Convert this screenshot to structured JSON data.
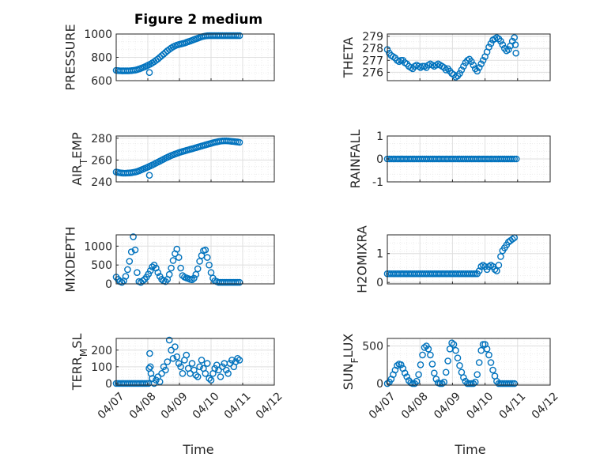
{
  "figure_title": "Figure 2 medium",
  "x_label": "Time",
  "x_tick_labels": [
    "04/07",
    "04/08",
    "04/09",
    "04/10",
    "04/11",
    "04/12"
  ],
  "colors": {
    "marker": "#0072BD",
    "axis": "#262626",
    "grid": "#DFDFDF",
    "minor_grid": "#EAEAEA"
  },
  "chart_data": [
    {
      "type": "scatter",
      "id": "pressure",
      "title": "Figure 2 medium",
      "ylabel_parts": [
        {
          "t": "PRESSURE"
        }
      ],
      "yticks": [
        600,
        800,
        1000
      ],
      "ytick_labels": [
        "600",
        "800",
        "1000"
      ],
      "ylim": [
        600,
        1000
      ],
      "xlim": [
        0,
        5
      ],
      "grid": true,
      "show_xticklabels": false,
      "x": [
        0.0,
        0.06,
        0.12,
        0.18,
        0.24,
        0.3,
        0.36,
        0.42,
        0.48,
        0.54,
        0.6,
        0.66,
        0.72,
        0.78,
        0.84,
        0.9,
        0.96,
        1.02,
        1.08,
        1.14,
        1.2,
        1.26,
        1.32,
        1.38,
        1.44,
        1.5,
        1.56,
        1.62,
        1.68,
        1.74,
        1.8,
        1.86,
        1.92,
        1.98,
        2.04,
        2.1,
        2.16,
        2.22,
        2.28,
        2.34,
        2.4,
        2.46,
        2.52,
        2.58,
        2.64,
        2.7,
        2.76,
        2.82,
        2.88,
        2.94,
        3.0,
        3.06,
        3.12,
        3.18,
        3.24,
        3.3,
        3.36,
        3.42,
        3.48,
        3.54,
        3.6,
        3.66,
        3.72,
        3.78,
        3.84,
        3.9,
        1.05
      ],
      "y": [
        688,
        686,
        685,
        684,
        684,
        684,
        684,
        685,
        686,
        688,
        690,
        694,
        700,
        706,
        712,
        718,
        726,
        734,
        742,
        752,
        762,
        774,
        786,
        800,
        814,
        828,
        842,
        856,
        868,
        880,
        890,
        898,
        905,
        910,
        914,
        918,
        922,
        928,
        934,
        940,
        946,
        952,
        958,
        964,
        970,
        976,
        980,
        983,
        985,
        986,
        986,
        986,
        986,
        986,
        986,
        986,
        986,
        986,
        986,
        986,
        986,
        986,
        986,
        986,
        986,
        986,
        670
      ]
    },
    {
      "type": "scatter",
      "id": "theta",
      "title": "",
      "ylabel_parts": [
        {
          "t": "THETA"
        }
      ],
      "yticks": [
        276,
        277,
        278,
        279
      ],
      "ytick_labels": [
        "276",
        "277",
        "278",
        "279"
      ],
      "ylim": [
        275.3,
        279.2
      ],
      "xlim": [
        0,
        5
      ],
      "grid": true,
      "show_xticklabels": false,
      "x": [
        0.0,
        0.06,
        0.12,
        0.18,
        0.24,
        0.3,
        0.36,
        0.42,
        0.48,
        0.54,
        0.6,
        0.66,
        0.72,
        0.78,
        0.84,
        0.9,
        0.96,
        1.02,
        1.08,
        1.14,
        1.2,
        1.26,
        1.32,
        1.38,
        1.44,
        1.5,
        1.56,
        1.62,
        1.68,
        1.74,
        1.8,
        1.86,
        1.92,
        1.98,
        2.04,
        2.1,
        2.16,
        2.22,
        2.28,
        2.34,
        2.4,
        2.46,
        2.52,
        2.58,
        2.64,
        2.7,
        2.76,
        2.82,
        2.88,
        2.94,
        3.0,
        3.06,
        3.12,
        3.18,
        3.24,
        3.3,
        3.36,
        3.42,
        3.48,
        3.54,
        3.6,
        3.66,
        3.72,
        3.78,
        3.84,
        3.9,
        3.93,
        3.95
      ],
      "y": [
        277.9,
        277.6,
        277.4,
        277.3,
        277.2,
        277.0,
        276.9,
        277.0,
        277.0,
        276.8,
        276.7,
        276.5,
        276.4,
        276.3,
        276.5,
        276.6,
        276.5,
        276.4,
        276.5,
        276.5,
        276.4,
        276.6,
        276.7,
        276.6,
        276.5,
        276.6,
        276.7,
        276.6,
        276.5,
        276.4,
        276.2,
        276.3,
        276.1,
        275.9,
        275.8,
        275.6,
        275.7,
        275.9,
        276.2,
        276.5,
        276.8,
        277.0,
        277.1,
        276.9,
        276.6,
        276.3,
        276.1,
        276.4,
        276.7,
        277.0,
        277.3,
        277.7,
        278.1,
        278.4,
        278.7,
        278.8,
        278.9,
        278.8,
        278.6,
        278.3,
        278.0,
        277.8,
        277.9,
        278.2,
        278.6,
        278.9,
        278.3,
        277.6
      ]
    },
    {
      "type": "scatter",
      "id": "air_temp",
      "title": "",
      "ylabel_parts": [
        {
          "t": "AIR"
        },
        {
          "t": "T",
          "sub": true
        },
        {
          "t": "EMP"
        }
      ],
      "yticks": [
        240,
        260,
        280
      ],
      "ytick_labels": [
        "240",
        "260",
        "280"
      ],
      "ylim": [
        240,
        282
      ],
      "xlim": [
        0,
        5
      ],
      "grid": true,
      "show_xticklabels": false,
      "x": [
        0.0,
        0.06,
        0.12,
        0.18,
        0.24,
        0.3,
        0.36,
        0.42,
        0.48,
        0.54,
        0.6,
        0.66,
        0.72,
        0.78,
        0.84,
        0.9,
        0.96,
        1.02,
        1.08,
        1.14,
        1.2,
        1.26,
        1.32,
        1.38,
        1.44,
        1.5,
        1.56,
        1.62,
        1.68,
        1.74,
        1.8,
        1.86,
        1.92,
        1.98,
        2.04,
        2.1,
        2.16,
        2.22,
        2.28,
        2.34,
        2.4,
        2.46,
        2.52,
        2.58,
        2.64,
        2.7,
        2.76,
        2.82,
        2.88,
        2.94,
        3.0,
        3.06,
        3.12,
        3.18,
        3.24,
        3.3,
        3.36,
        3.42,
        3.48,
        3.54,
        3.6,
        3.66,
        3.72,
        3.78,
        3.84,
        3.9,
        1.05
      ],
      "y": [
        249,
        248.6,
        248.3,
        248.1,
        248.0,
        248.0,
        248.1,
        248.2,
        248.4,
        248.7,
        249.0,
        249.5,
        250.1,
        250.8,
        251.5,
        252.3,
        253.0,
        253.8,
        254.6,
        255.4,
        256.3,
        257.2,
        258.1,
        259.0,
        259.9,
        260.8,
        261.7,
        262.5,
        263.3,
        264.1,
        264.8,
        265.5,
        266.1,
        266.7,
        267.3,
        267.8,
        268.3,
        268.8,
        269.3,
        269.8,
        270.3,
        270.8,
        271.3,
        271.8,
        272.3,
        272.8,
        273.3,
        273.8,
        274.3,
        274.8,
        275.3,
        275.8,
        276.2,
        276.6,
        277.0,
        277.3,
        277.5,
        277.6,
        277.6,
        277.5,
        277.3,
        277.1,
        276.9,
        276.7,
        276.5,
        276.2,
        246
      ]
    },
    {
      "type": "scatter",
      "id": "rainfall",
      "title": "",
      "ylabel_parts": [
        {
          "t": "RAINFALL"
        }
      ],
      "yticks": [
        -1,
        0,
        1
      ],
      "ytick_labels": [
        "-1",
        "0",
        "1"
      ],
      "ylim": [
        -1,
        1
      ],
      "xlim": [
        0,
        5
      ],
      "grid": true,
      "show_xticklabels": false,
      "x": [
        0.0,
        0.06,
        0.12,
        0.18,
        0.24,
        0.3,
        0.36,
        0.42,
        0.48,
        0.54,
        0.6,
        0.66,
        0.72,
        0.78,
        0.84,
        0.9,
        0.96,
        1.02,
        1.08,
        1.14,
        1.2,
        1.26,
        1.32,
        1.38,
        1.44,
        1.5,
        1.56,
        1.62,
        1.68,
        1.74,
        1.8,
        1.86,
        1.92,
        1.98,
        2.04,
        2.1,
        2.16,
        2.22,
        2.28,
        2.34,
        2.4,
        2.46,
        2.52,
        2.58,
        2.64,
        2.7,
        2.76,
        2.82,
        2.88,
        2.94,
        3.0,
        3.06,
        3.12,
        3.18,
        3.24,
        3.3,
        3.36,
        3.42,
        3.48,
        3.54,
        3.6,
        3.66,
        3.72,
        3.78,
        3.84,
        3.9,
        3.96
      ],
      "y": [
        0,
        0,
        0,
        0,
        0,
        0,
        0,
        0,
        0,
        0,
        0,
        0,
        0,
        0,
        0,
        0,
        0,
        0,
        0,
        0,
        0,
        0,
        0,
        0,
        0,
        0,
        0,
        0,
        0,
        0,
        0,
        0,
        0,
        0,
        0,
        0,
        0,
        0,
        0,
        0,
        0,
        0,
        0,
        0,
        0,
        0,
        0,
        0,
        0,
        0,
        0,
        0,
        0,
        0,
        0,
        0,
        0,
        0,
        0,
        0,
        0,
        0,
        0,
        0,
        0,
        0,
        0
      ]
    },
    {
      "type": "scatter",
      "id": "mixdepth",
      "title": "",
      "ylabel_parts": [
        {
          "t": "MIXDEPTH"
        }
      ],
      "yticks": [
        0,
        500,
        1000
      ],
      "ytick_labels": [
        "0",
        "500",
        "1000"
      ],
      "ylim": [
        0,
        1300
      ],
      "xlim": [
        0,
        5
      ],
      "grid": true,
      "show_xticklabels": false,
      "x": [
        0.0,
        0.06,
        0.12,
        0.18,
        0.24,
        0.3,
        0.36,
        0.42,
        0.48,
        0.54,
        0.6,
        0.66,
        0.72,
        0.78,
        0.84,
        0.9,
        0.96,
        1.02,
        1.08,
        1.14,
        1.2,
        1.26,
        1.32,
        1.38,
        1.44,
        1.5,
        1.56,
        1.62,
        1.68,
        1.74,
        1.8,
        1.86,
        1.92,
        1.98,
        2.04,
        2.1,
        2.16,
        2.22,
        2.28,
        2.34,
        2.4,
        2.46,
        2.52,
        2.58,
        2.64,
        2.7,
        2.76,
        2.82,
        2.88,
        2.94,
        3.0,
        3.06,
        3.12,
        3.18,
        3.24,
        3.3,
        3.36,
        3.42,
        3.48,
        3.54,
        3.6,
        3.66,
        3.72,
        3.78,
        3.84,
        3.9
      ],
      "y": [
        180,
        120,
        60,
        40,
        80,
        200,
        380,
        600,
        850,
        1250,
        900,
        300,
        60,
        40,
        80,
        120,
        180,
        260,
        350,
        450,
        500,
        420,
        300,
        200,
        120,
        80,
        60,
        120,
        250,
        420,
        620,
        800,
        920,
        700,
        420,
        220,
        180,
        160,
        140,
        120,
        110,
        150,
        250,
        400,
        600,
        750,
        880,
        900,
        700,
        500,
        300,
        150,
        80,
        60,
        40,
        40,
        40,
        40,
        40,
        40,
        40,
        40,
        40,
        40,
        40,
        40
      ]
    },
    {
      "type": "scatter",
      "id": "h2omixra",
      "title": "",
      "ylabel_parts": [
        {
          "t": "H2OMIXRA"
        }
      ],
      "yticks": [
        0,
        1
      ],
      "ytick_labels": [
        "0",
        "1"
      ],
      "ylim": [
        -0.05,
        1.65
      ],
      "xlim": [
        0,
        5
      ],
      "grid": true,
      "show_xticklabels": false,
      "x": [
        0.0,
        0.06,
        0.12,
        0.18,
        0.24,
        0.3,
        0.36,
        0.42,
        0.48,
        0.54,
        0.6,
        0.66,
        0.72,
        0.78,
        0.84,
        0.9,
        0.96,
        1.02,
        1.08,
        1.14,
        1.2,
        1.26,
        1.32,
        1.38,
        1.44,
        1.5,
        1.56,
        1.62,
        1.68,
        1.74,
        1.8,
        1.86,
        1.92,
        1.98,
        2.04,
        2.1,
        2.16,
        2.22,
        2.28,
        2.34,
        2.4,
        2.46,
        2.52,
        2.58,
        2.64,
        2.7,
        2.76,
        2.82,
        2.88,
        2.94,
        3.0,
        3.06,
        3.12,
        3.18,
        3.24,
        3.3,
        3.36,
        3.42,
        3.48,
        3.54,
        3.6,
        3.66,
        3.72,
        3.78,
        3.84,
        3.9
      ],
      "y": [
        0.3,
        0.3,
        0.3,
        0.3,
        0.3,
        0.3,
        0.3,
        0.3,
        0.3,
        0.3,
        0.3,
        0.3,
        0.3,
        0.3,
        0.3,
        0.3,
        0.3,
        0.3,
        0.3,
        0.3,
        0.3,
        0.3,
        0.3,
        0.3,
        0.3,
        0.3,
        0.3,
        0.3,
        0.3,
        0.3,
        0.3,
        0.3,
        0.3,
        0.3,
        0.3,
        0.3,
        0.3,
        0.3,
        0.3,
        0.3,
        0.3,
        0.3,
        0.3,
        0.3,
        0.3,
        0.3,
        0.3,
        0.4,
        0.55,
        0.6,
        0.55,
        0.45,
        0.55,
        0.6,
        0.55,
        0.45,
        0.4,
        0.6,
        0.9,
        1.1,
        1.2,
        1.3,
        1.4,
        1.45,
        1.5,
        1.55
      ]
    },
    {
      "type": "scatter",
      "id": "terr_msl",
      "title": "",
      "ylabel_parts": [
        {
          "t": "TERR"
        },
        {
          "t": "M",
          "sub": true
        },
        {
          "t": "SL"
        }
      ],
      "yticks": [
        0,
        100,
        200
      ],
      "ytick_labels": [
        "0",
        "100",
        "200"
      ],
      "ylim": [
        -10,
        270
      ],
      "xlim": [
        0,
        5
      ],
      "grid": true,
      "show_xticklabels": true,
      "x": [
        0.0,
        0.06,
        0.12,
        0.18,
        0.24,
        0.3,
        0.36,
        0.42,
        0.48,
        0.54,
        0.6,
        0.66,
        0.72,
        0.78,
        0.84,
        0.9,
        0.96,
        1.02,
        1.04,
        1.06,
        1.08,
        1.1,
        1.14,
        1.2,
        1.26,
        1.32,
        1.38,
        1.44,
        1.5,
        1.56,
        1.62,
        1.68,
        1.74,
        1.8,
        1.86,
        1.92,
        1.98,
        2.04,
        2.1,
        2.16,
        2.22,
        2.28,
        2.34,
        2.4,
        2.46,
        2.52,
        2.58,
        2.64,
        2.7,
        2.76,
        2.82,
        2.88,
        2.94,
        3.0,
        3.06,
        3.12,
        3.18,
        3.24,
        3.3,
        3.36,
        3.42,
        3.48,
        3.54,
        3.6,
        3.66,
        3.72,
        3.78,
        3.84,
        3.9
      ],
      "y": [
        0,
        0,
        0,
        0,
        0,
        0,
        0,
        0,
        0,
        0,
        0,
        0,
        0,
        0,
        0,
        0,
        0,
        0,
        90,
        180,
        100,
        60,
        30,
        0,
        20,
        40,
        10,
        60,
        100,
        80,
        130,
        260,
        200,
        150,
        220,
        160,
        120,
        100,
        60,
        140,
        170,
        90,
        60,
        120,
        80,
        50,
        40,
        100,
        140,
        90,
        60,
        120,
        30,
        20,
        60,
        90,
        110,
        80,
        40,
        100,
        120,
        80,
        60,
        120,
        140,
        100,
        130,
        150,
        140
      ]
    },
    {
      "type": "scatter",
      "id": "sun_flux",
      "title": "",
      "ylabel_parts": [
        {
          "t": "SUN"
        },
        {
          "t": "F",
          "sub": true
        },
        {
          "t": "LUX"
        }
      ],
      "yticks": [
        0,
        500
      ],
      "ytick_labels": [
        "0",
        "500"
      ],
      "ylim": [
        -20,
        600
      ],
      "xlim": [
        0,
        5
      ],
      "grid": true,
      "show_xticklabels": true,
      "x": [
        0.0,
        0.06,
        0.12,
        0.18,
        0.24,
        0.3,
        0.36,
        0.42,
        0.48,
        0.54,
        0.6,
        0.66,
        0.72,
        0.78,
        0.84,
        0.9,
        0.96,
        1.02,
        1.08,
        1.14,
        1.2,
        1.26,
        1.32,
        1.38,
        1.44,
        1.5,
        1.56,
        1.62,
        1.68,
        1.74,
        1.8,
        1.86,
        1.92,
        1.98,
        2.04,
        2.1,
        2.16,
        2.22,
        2.28,
        2.34,
        2.4,
        2.46,
        2.52,
        2.58,
        2.64,
        2.7,
        2.76,
        2.82,
        2.88,
        2.94,
        3.0,
        3.06,
        3.12,
        3.18,
        3.24,
        3.3,
        3.36,
        3.42,
        3.48,
        3.54,
        3.6,
        3.66,
        3.72,
        3.78,
        3.84,
        3.9
      ],
      "y": [
        0,
        20,
        60,
        120,
        180,
        240,
        260,
        250,
        200,
        140,
        90,
        40,
        10,
        0,
        0,
        30,
        120,
        250,
        380,
        480,
        500,
        460,
        380,
        260,
        140,
        60,
        10,
        0,
        0,
        20,
        150,
        300,
        460,
        540,
        520,
        440,
        340,
        240,
        150,
        80,
        30,
        0,
        0,
        0,
        0,
        20,
        120,
        280,
        440,
        520,
        520,
        460,
        380,
        280,
        180,
        100,
        30,
        0,
        0,
        0,
        0,
        0,
        0,
        0,
        0,
        0
      ]
    }
  ]
}
